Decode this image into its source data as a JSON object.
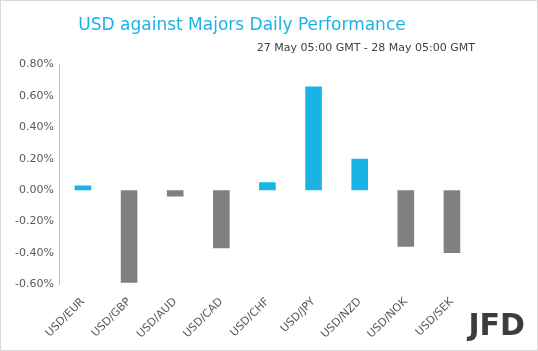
{
  "chart_data": {
    "type": "bar",
    "title": "USD against Majors Daily Performance",
    "subtitle": "27 May 05:00 GMT - 28 May 05:00 GMT",
    "annotations": [
      "JFD"
    ],
    "categories": [
      "USD/EUR",
      "USD/GBP",
      "USD/AUD",
      "USD/CAD",
      "USD/CHF",
      "USD/JPY",
      "USD/NZD",
      "USD/NOK",
      "USD/SEK"
    ],
    "values": [
      0.03,
      -0.59,
      -0.04,
      -0.37,
      0.05,
      0.66,
      0.2,
      -0.36,
      -0.4
    ],
    "colors": [
      "#1ab3e6",
      "#808080",
      "#808080",
      "#808080",
      "#1ab3e6",
      "#1ab3e6",
      "#1ab3e6",
      "#808080",
      "#808080"
    ],
    "ylim": [
      -0.6,
      0.8
    ],
    "yticks": [
      {
        "value": -0.6,
        "label": "-0.60%"
      },
      {
        "value": -0.4,
        "label": "-0.40%"
      },
      {
        "value": -0.2,
        "label": "-0.20%"
      },
      {
        "value": 0,
        "label": "0.00%"
      },
      {
        "value": 0.2,
        "label": "0.20%"
      },
      {
        "value": 0.4,
        "label": "0.40%"
      },
      {
        "value": 0.6,
        "label": "0.60%"
      },
      {
        "value": 0.8,
        "label": "0.80%"
      }
    ],
    "grid": false
  }
}
